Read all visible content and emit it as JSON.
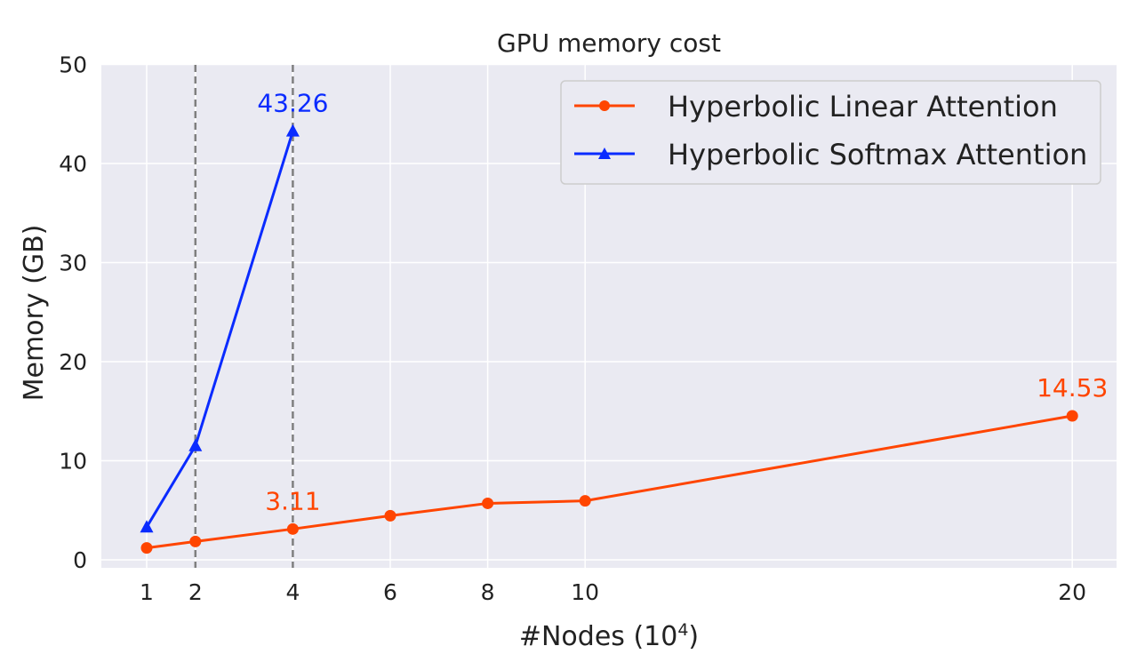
{
  "chart_data": {
    "type": "line",
    "title": "GPU memory cost",
    "xlabel": "#Nodes (10",
    "xlabel_sup": "4",
    "xlabel_close": ")",
    "ylabel": "Memory (GB)",
    "x_ticks": [
      1,
      2,
      4,
      6,
      8,
      10,
      20
    ],
    "x_tick_labels": [
      "1",
      "2",
      "4",
      "6",
      "8",
      "10",
      "20"
    ],
    "ylim": [
      -0.8,
      50
    ],
    "y_ticks": [
      0,
      10,
      20,
      30,
      40,
      50
    ],
    "y_tick_labels": [
      "0",
      "10",
      "20",
      "30",
      "40",
      "50"
    ],
    "grid": true,
    "legend_position": "top-right",
    "vertical_dashed_lines_at": [
      2,
      4
    ],
    "series": [
      {
        "name": "Hyperbolic Linear Attention",
        "color": "#ff4500",
        "marker": "circle",
        "x": [
          1,
          2,
          4,
          6,
          8,
          10,
          20
        ],
        "y": [
          1.2,
          1.85,
          3.11,
          4.45,
          5.7,
          5.95,
          14.53
        ]
      },
      {
        "name": "Hyperbolic Softmax Attention",
        "color": "#0a2bff",
        "marker": "triangle",
        "x": [
          1,
          2,
          4
        ],
        "y": [
          3.3,
          11.5,
          43.26
        ]
      }
    ],
    "annotations": [
      {
        "text": "43.26",
        "x": 4,
        "y": 43.26,
        "color": "#0a2bff"
      },
      {
        "text": "3.11",
        "x": 4,
        "y": 3.11,
        "color": "#ff4500"
      },
      {
        "text": "14.53",
        "x": 20,
        "y": 14.53,
        "color": "#ff4500"
      }
    ]
  }
}
